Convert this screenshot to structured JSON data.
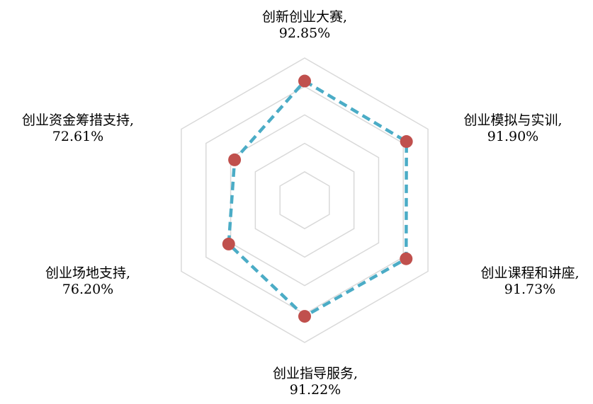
{
  "chart_data": {
    "type": "radar",
    "categories": [
      "创新创业大赛",
      "创业模拟与实训",
      "创业课程和讲座",
      "创业指导服务",
      "创业场地支持",
      "创业资金筹措支持"
    ],
    "values": [
      92.85,
      91.9,
      91.73,
      91.22,
      76.2,
      72.61
    ],
    "value_labels": [
      "92.85%",
      "91.90%",
      "91.73%",
      "91.22%",
      "76.20%",
      "72.61%"
    ],
    "rlim": [
      30,
      105
    ],
    "grid_levels": [
      45,
      60,
      75,
      90,
      105
    ],
    "grid": true,
    "legend": "none",
    "colors": {
      "line": "#4bacc6",
      "marker": "#c0504d",
      "grid": "#d9d9d9"
    }
  }
}
